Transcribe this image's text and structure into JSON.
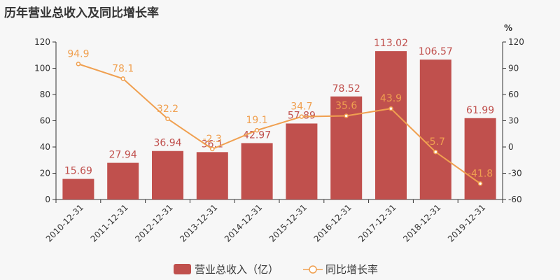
{
  "chart_data": {
    "type": "bar",
    "title": "历年营业总收入及同比增长率",
    "categories": [
      "2010-12-31",
      "2011-12-31",
      "2012-12-31",
      "2013-12-31",
      "2014-12-31",
      "2015-12-31",
      "2016-12-31",
      "2017-12-31",
      "2018-12-31",
      "2019-12-31"
    ],
    "series": [
      {
        "name": "营业总收入（亿）",
        "type": "bar",
        "axis": "left",
        "color": "#c0504d",
        "values": [
          15.69,
          27.94,
          36.94,
          36.1,
          42.97,
          57.89,
          78.52,
          113.02,
          106.57,
          61.99
        ]
      },
      {
        "name": "同比增长率",
        "type": "line",
        "axis": "right",
        "color": "#f0a050",
        "values": [
          94.9,
          78.1,
          32.2,
          -2.3,
          19.1,
          34.7,
          35.6,
          43.9,
          -5.7,
          -41.8
        ]
      }
    ],
    "y_left": {
      "ylim": [
        0,
        120
      ],
      "ticks": [
        0,
        20,
        40,
        60,
        80,
        100,
        120
      ]
    },
    "y_right": {
      "ylim": [
        -60,
        120
      ],
      "ticks": [
        -60,
        -30,
        0,
        30,
        60,
        90,
        120
      ],
      "unit": "%"
    },
    "legend": "bottom-center",
    "grid": false
  }
}
